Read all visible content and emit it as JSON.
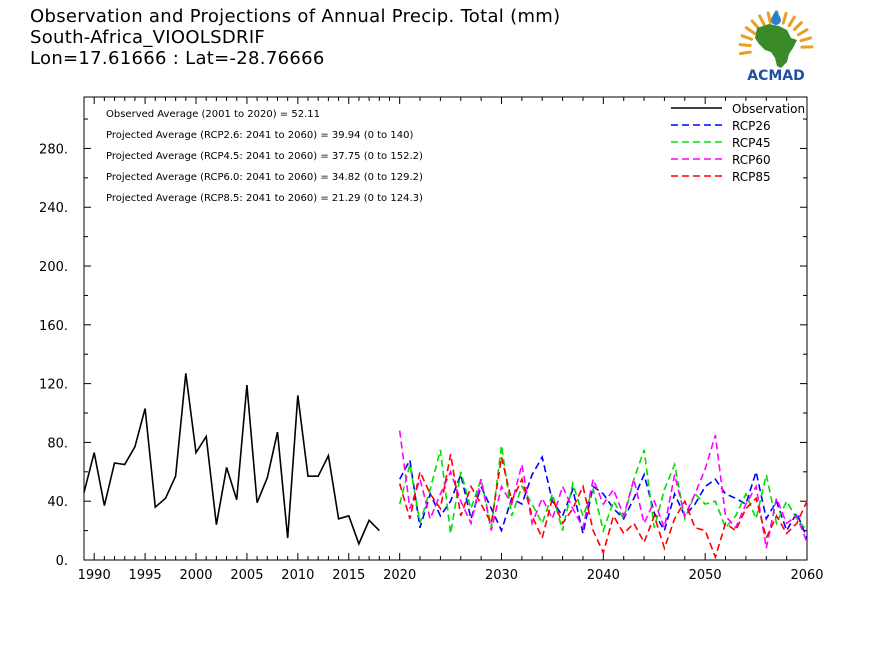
{
  "title": {
    "line1": "Observation and Projections of Annual Precip. Total (mm)",
    "line2": "South-Africa_VIOOLSDRIF",
    "line3": "Lon=17.61666 : Lat=-28.76666"
  },
  "logo": {
    "text": "ACMAD",
    "colors": {
      "africa": "#3a8a2a",
      "sun": "#e8a020",
      "text": "#1e4fa0",
      "drop": "#2a7fd0"
    }
  },
  "annotations": [
    "Observed Average (2001 to 2020) = 52.11",
    "Projected Average (RCP2.6: 2041 to 2060) = 39.94 (0 to 140)",
    "Projected Average (RCP4.5: 2041 to 2060) = 37.75 (0 to 152.2)",
    "Projected Average (RCP6.0: 2041 to 2060) = 34.82 (0 to 129.2)",
    "Projected Average (RCP8.5: 2041 to 2060) = 21.29 (0 to 124.3)"
  ],
  "chart_data": {
    "type": "line",
    "xlim": [
      1989,
      2060
    ],
    "ylim": [
      0,
      315
    ],
    "x_ticks": [
      1990,
      1995,
      2000,
      2005,
      2010,
      2015,
      2020,
      2030,
      2040,
      2050,
      2060
    ],
    "y_ticks": [
      "0.",
      "40.",
      "80.",
      "120.",
      "160.",
      "200.",
      "240.",
      "280."
    ],
    "y_tick_values": [
      0,
      40,
      80,
      120,
      160,
      200,
      240,
      280
    ],
    "legend_position": "top-right",
    "series": [
      {
        "name": "Observation",
        "color": "#000000",
        "dash": "solid",
        "x": [
          1989,
          1990,
          1991,
          1992,
          1993,
          1994,
          1995,
          1996,
          1997,
          1998,
          1999,
          2000,
          2001,
          2002,
          2003,
          2004,
          2005,
          2006,
          2007,
          2008,
          2009,
          2010,
          2011,
          2012,
          2013,
          2014,
          2015,
          2016,
          2017,
          2018,
          2019
        ],
        "values": [
          46,
          73,
          37,
          66,
          65,
          77,
          103,
          36,
          42,
          57,
          127,
          73,
          84,
          24,
          63,
          41,
          119,
          39,
          56,
          87,
          15,
          112,
          57,
          57,
          71,
          28,
          30,
          11,
          27,
          20,
          null
        ]
      },
      {
        "name": "RCP26",
        "color": "#0000ff",
        "dash": "dashed",
        "x": [
          2020,
          2021,
          2022,
          2023,
          2024,
          2025,
          2026,
          2027,
          2028,
          2029,
          2030,
          2031,
          2032,
          2033,
          2034,
          2035,
          2036,
          2037,
          2038,
          2039,
          2040,
          2041,
          2042,
          2043,
          2044,
          2045,
          2046,
          2047,
          2048,
          2049,
          2050,
          2051,
          2052,
          2053,
          2054,
          2055,
          2056,
          2057,
          2058,
          2059,
          2060
        ],
        "values": [
          55,
          68,
          22,
          45,
          30,
          40,
          58,
          28,
          50,
          35,
          20,
          42,
          38,
          58,
          70,
          40,
          30,
          48,
          18,
          50,
          45,
          35,
          28,
          42,
          58,
          32,
          20,
          45,
          30,
          38,
          50,
          55,
          45,
          42,
          38,
          60,
          28,
          40,
          20,
          32,
          15
        ]
      },
      {
        "name": "RCP45",
        "color": "#00e000",
        "dash": "dashed",
        "x": [
          2020,
          2021,
          2022,
          2023,
          2024,
          2025,
          2026,
          2027,
          2028,
          2029,
          2030,
          2031,
          2032,
          2033,
          2034,
          2035,
          2036,
          2037,
          2038,
          2039,
          2040,
          2041,
          2042,
          2043,
          2044,
          2045,
          2046,
          2047,
          2048,
          2049,
          2050,
          2051,
          2052,
          2053,
          2054,
          2055,
          2056,
          2057,
          2058,
          2059,
          2060
        ],
        "values": [
          38,
          65,
          25,
          48,
          75,
          18,
          60,
          35,
          55,
          22,
          78,
          30,
          50,
          38,
          25,
          45,
          20,
          52,
          30,
          48,
          20,
          40,
          28,
          55,
          75,
          22,
          48,
          65,
          28,
          45,
          38,
          40,
          22,
          30,
          45,
          28,
          58,
          25,
          40,
          28,
          20
        ]
      },
      {
        "name": "RCP60",
        "color": "#ff00ff",
        "dash": "dashed",
        "x": [
          2020,
          2021,
          2022,
          2023,
          2024,
          2025,
          2026,
          2027,
          2028,
          2029,
          2030,
          2031,
          2032,
          2033,
          2034,
          2035,
          2036,
          2037,
          2038,
          2039,
          2040,
          2041,
          2042,
          2043,
          2044,
          2045,
          2046,
          2047,
          2048,
          2049,
          2050,
          2051,
          2052,
          2053,
          2054,
          2055,
          2056,
          2057,
          2058,
          2059,
          2060
        ],
        "values": [
          88,
          35,
          55,
          28,
          45,
          60,
          40,
          25,
          55,
          20,
          50,
          38,
          65,
          25,
          42,
          28,
          50,
          35,
          22,
          55,
          38,
          48,
          30,
          55,
          25,
          40,
          22,
          58,
          30,
          45,
          62,
          85,
          30,
          22,
          38,
          50,
          8,
          42,
          25,
          30,
          12
        ]
      },
      {
        "name": "RCP85",
        "color": "#ff0000",
        "dash": "dashed",
        "x": [
          2020,
          2021,
          2022,
          2023,
          2024,
          2025,
          2026,
          2027,
          2028,
          2029,
          2030,
          2031,
          2032,
          2033,
          2034,
          2035,
          2036,
          2037,
          2038,
          2039,
          2040,
          2041,
          2042,
          2043,
          2044,
          2045,
          2046,
          2047,
          2048,
          2049,
          2050,
          2051,
          2052,
          2053,
          2054,
          2055,
          2056,
          2057,
          2058,
          2059,
          2060
        ],
        "values": [
          52,
          28,
          60,
          45,
          35,
          72,
          30,
          50,
          38,
          25,
          70,
          40,
          55,
          30,
          15,
          42,
          25,
          35,
          50,
          20,
          5,
          30,
          18,
          25,
          12,
          30,
          8,
          28,
          40,
          22,
          20,
          2,
          25,
          20,
          35,
          42,
          15,
          30,
          18,
          25,
          40
        ]
      }
    ]
  }
}
